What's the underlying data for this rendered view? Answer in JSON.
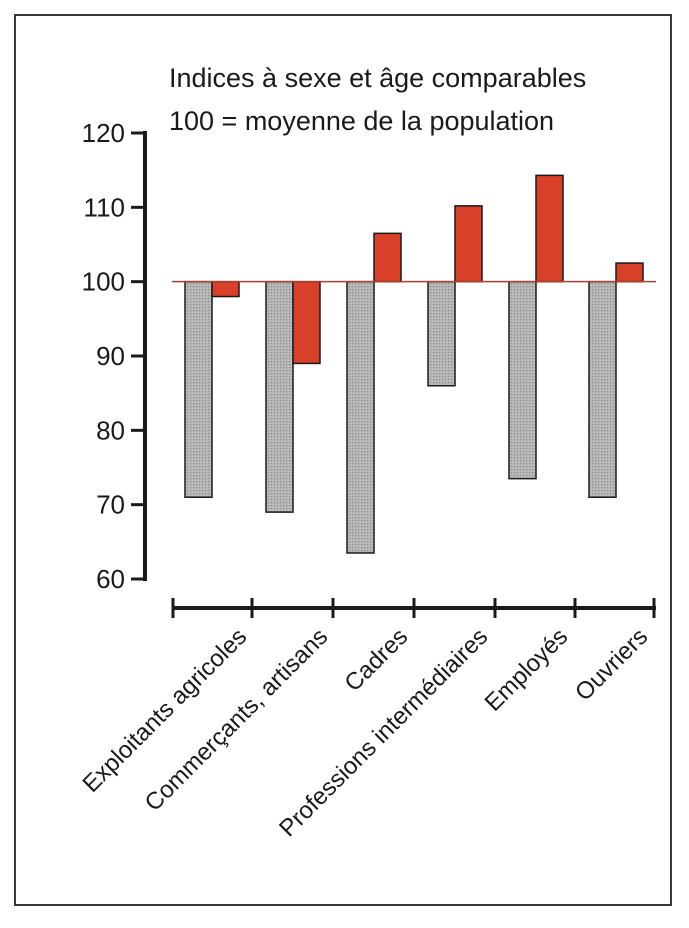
{
  "chart_data": {
    "type": "bar",
    "title_lines": [
      "Indices à sexe et âge comparables",
      "100 = moyenne de la population"
    ],
    "categories": [
      "Exploitants agricoles",
      "Commerçants, artisans",
      "Cadres",
      "Professions intermédiaires",
      "Employés",
      "Ouvriers"
    ],
    "series": [
      {
        "color": "#a9a9a9",
        "values": [
          71,
          69,
          63.5,
          86,
          73.5,
          71
        ]
      },
      {
        "color": "#d9402a",
        "values": [
          98,
          89,
          106.5,
          110.2,
          114.3,
          102.5
        ]
      }
    ],
    "baseline": 100,
    "baseline_color": "#b04030",
    "ylim": [
      60,
      120
    ],
    "yticks": [
      60,
      70,
      80,
      90,
      100,
      110,
      120
    ],
    "ytick_labels": [
      "60",
      "70",
      "80",
      "90",
      "100",
      "110",
      "120"
    ],
    "grid": false,
    "legend": "none"
  }
}
